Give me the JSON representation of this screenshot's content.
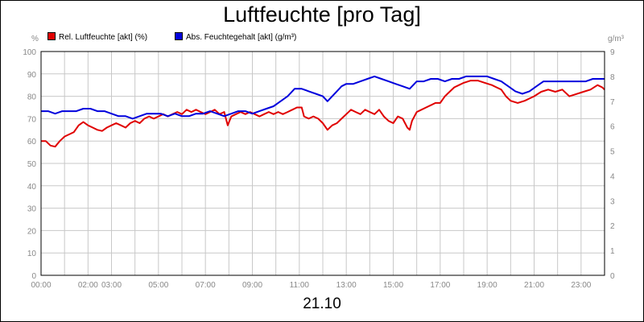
{
  "chart_data": {
    "type": "line",
    "title": "Luftfeuchte [pro Tag]",
    "date_label": "21.10",
    "left_axis": {
      "unit": "%",
      "ylim": [
        0,
        100
      ],
      "ticks": [
        0,
        10,
        20,
        30,
        40,
        50,
        60,
        70,
        80,
        90,
        100
      ]
    },
    "right_axis": {
      "unit": "g/m³",
      "ylim": [
        0,
        9
      ],
      "ticks": [
        0,
        1,
        2,
        3,
        4,
        5,
        6,
        7,
        8,
        9
      ]
    },
    "x_ticks": [
      "00:00",
      "02:00",
      "03:00",
      "05:00",
      "07:00",
      "09:00",
      "11:00",
      "13:00",
      "15:00",
      "17:00",
      "19:00",
      "21:00",
      "23:00"
    ],
    "x_tick_hours": [
      0,
      2,
      3,
      5,
      7,
      9,
      11,
      13,
      15,
      17,
      19,
      21,
      23
    ],
    "x_range_hours": [
      0,
      24
    ],
    "grid": true,
    "legend_position": "top-left",
    "series": [
      {
        "name": "Rel. Luftfeuchte [akt] (%)",
        "color": "#e00000",
        "axis": "left",
        "points": [
          [
            0.0,
            60
          ],
          [
            0.2,
            60
          ],
          [
            0.4,
            58
          ],
          [
            0.6,
            57.5
          ],
          [
            0.8,
            60
          ],
          [
            1.0,
            62
          ],
          [
            1.2,
            63
          ],
          [
            1.4,
            64
          ],
          [
            1.6,
            67
          ],
          [
            1.8,
            68.5
          ],
          [
            2.0,
            67
          ],
          [
            2.2,
            66
          ],
          [
            2.4,
            65
          ],
          [
            2.6,
            64.5
          ],
          [
            2.8,
            66
          ],
          [
            3.0,
            67
          ],
          [
            3.2,
            68
          ],
          [
            3.4,
            67
          ],
          [
            3.6,
            66
          ],
          [
            3.8,
            68
          ],
          [
            4.0,
            69
          ],
          [
            4.2,
            68
          ],
          [
            4.4,
            70
          ],
          [
            4.6,
            71
          ],
          [
            4.8,
            70
          ],
          [
            5.0,
            71
          ],
          [
            5.2,
            72
          ],
          [
            5.4,
            71
          ],
          [
            5.6,
            72
          ],
          [
            5.8,
            73
          ],
          [
            6.0,
            72
          ],
          [
            6.2,
            74
          ],
          [
            6.4,
            73
          ],
          [
            6.6,
            74
          ],
          [
            6.8,
            73
          ],
          [
            7.0,
            72
          ],
          [
            7.2,
            73
          ],
          [
            7.4,
            74
          ],
          [
            7.6,
            72
          ],
          [
            7.8,
            73
          ],
          [
            7.95,
            67
          ],
          [
            8.1,
            71
          ],
          [
            8.3,
            72
          ],
          [
            8.5,
            73
          ],
          [
            8.7,
            72
          ],
          [
            8.9,
            73
          ],
          [
            9.1,
            72
          ],
          [
            9.3,
            71
          ],
          [
            9.5,
            72
          ],
          [
            9.7,
            73
          ],
          [
            9.9,
            72
          ],
          [
            10.1,
            73
          ],
          [
            10.3,
            72
          ],
          [
            10.5,
            73
          ],
          [
            10.7,
            74
          ],
          [
            10.9,
            75
          ],
          [
            11.1,
            75
          ],
          [
            11.2,
            71
          ],
          [
            11.4,
            70
          ],
          [
            11.6,
            71
          ],
          [
            11.8,
            70
          ],
          [
            12.0,
            68
          ],
          [
            12.2,
            65
          ],
          [
            12.4,
            67
          ],
          [
            12.6,
            68
          ],
          [
            12.8,
            70
          ],
          [
            13.0,
            72
          ],
          [
            13.2,
            74
          ],
          [
            13.4,
            73
          ],
          [
            13.6,
            72
          ],
          [
            13.8,
            74
          ],
          [
            14.0,
            73
          ],
          [
            14.2,
            72
          ],
          [
            14.4,
            74
          ],
          [
            14.6,
            71
          ],
          [
            14.8,
            69
          ],
          [
            15.0,
            68
          ],
          [
            15.2,
            71
          ],
          [
            15.4,
            70
          ],
          [
            15.6,
            66
          ],
          [
            15.7,
            65
          ],
          [
            15.8,
            69
          ],
          [
            16.0,
            73
          ],
          [
            16.2,
            74
          ],
          [
            16.4,
            75
          ],
          [
            16.6,
            76
          ],
          [
            16.8,
            77
          ],
          [
            17.0,
            77
          ],
          [
            17.2,
            80
          ],
          [
            17.4,
            82
          ],
          [
            17.6,
            84
          ],
          [
            17.8,
            85
          ],
          [
            18.0,
            86
          ],
          [
            18.3,
            87
          ],
          [
            18.6,
            87
          ],
          [
            18.9,
            86
          ],
          [
            19.2,
            85
          ],
          [
            19.4,
            84
          ],
          [
            19.6,
            83
          ],
          [
            19.8,
            80
          ],
          [
            20.0,
            78
          ],
          [
            20.3,
            77
          ],
          [
            20.6,
            78
          ],
          [
            20.8,
            79
          ],
          [
            21.0,
            80
          ],
          [
            21.3,
            82
          ],
          [
            21.6,
            83
          ],
          [
            21.9,
            82
          ],
          [
            22.2,
            83
          ],
          [
            22.5,
            80
          ],
          [
            22.8,
            81
          ],
          [
            23.1,
            82
          ],
          [
            23.4,
            83
          ],
          [
            23.7,
            85
          ],
          [
            23.9,
            84
          ],
          [
            24.0,
            83
          ]
        ]
      },
      {
        "name": "Abs. Feuchtegehalt [akt] (g/m³)",
        "color": "#0000dd",
        "axis": "right",
        "points": [
          [
            0.0,
            6.6
          ],
          [
            0.3,
            6.6
          ],
          [
            0.6,
            6.5
          ],
          [
            0.9,
            6.6
          ],
          [
            1.2,
            6.6
          ],
          [
            1.5,
            6.6
          ],
          [
            1.8,
            6.7
          ],
          [
            2.1,
            6.7
          ],
          [
            2.4,
            6.6
          ],
          [
            2.7,
            6.6
          ],
          [
            3.0,
            6.5
          ],
          [
            3.3,
            6.4
          ],
          [
            3.6,
            6.4
          ],
          [
            3.9,
            6.3
          ],
          [
            4.2,
            6.4
          ],
          [
            4.5,
            6.5
          ],
          [
            4.8,
            6.5
          ],
          [
            5.1,
            6.5
          ],
          [
            5.4,
            6.4
          ],
          [
            5.7,
            6.5
          ],
          [
            6.0,
            6.4
          ],
          [
            6.3,
            6.4
          ],
          [
            6.6,
            6.5
          ],
          [
            6.9,
            6.5
          ],
          [
            7.2,
            6.6
          ],
          [
            7.5,
            6.5
          ],
          [
            7.8,
            6.4
          ],
          [
            8.1,
            6.5
          ],
          [
            8.4,
            6.6
          ],
          [
            8.7,
            6.6
          ],
          [
            9.0,
            6.5
          ],
          [
            9.3,
            6.6
          ],
          [
            9.6,
            6.7
          ],
          [
            9.9,
            6.8
          ],
          [
            10.2,
            7.0
          ],
          [
            10.5,
            7.2
          ],
          [
            10.8,
            7.5
          ],
          [
            11.1,
            7.5
          ],
          [
            11.4,
            7.4
          ],
          [
            11.7,
            7.3
          ],
          [
            12.0,
            7.2
          ],
          [
            12.2,
            7.0
          ],
          [
            12.4,
            7.2
          ],
          [
            12.6,
            7.4
          ],
          [
            12.8,
            7.6
          ],
          [
            13.0,
            7.7
          ],
          [
            13.3,
            7.7
          ],
          [
            13.6,
            7.8
          ],
          [
            13.9,
            7.9
          ],
          [
            14.2,
            8.0
          ],
          [
            14.5,
            7.9
          ],
          [
            14.8,
            7.8
          ],
          [
            15.1,
            7.7
          ],
          [
            15.4,
            7.6
          ],
          [
            15.7,
            7.5
          ],
          [
            16.0,
            7.8
          ],
          [
            16.3,
            7.8
          ],
          [
            16.6,
            7.9
          ],
          [
            16.9,
            7.9
          ],
          [
            17.2,
            7.8
          ],
          [
            17.5,
            7.9
          ],
          [
            17.8,
            7.9
          ],
          [
            18.1,
            8.0
          ],
          [
            18.4,
            8.0
          ],
          [
            18.7,
            8.0
          ],
          [
            19.0,
            8.0
          ],
          [
            19.3,
            7.9
          ],
          [
            19.6,
            7.8
          ],
          [
            19.9,
            7.6
          ],
          [
            20.2,
            7.4
          ],
          [
            20.5,
            7.3
          ],
          [
            20.8,
            7.4
          ],
          [
            21.1,
            7.6
          ],
          [
            21.4,
            7.8
          ],
          [
            21.7,
            7.8
          ],
          [
            22.0,
            7.8
          ],
          [
            22.3,
            7.8
          ],
          [
            22.6,
            7.8
          ],
          [
            22.9,
            7.8
          ],
          [
            23.2,
            7.8
          ],
          [
            23.5,
            7.9
          ],
          [
            23.8,
            7.9
          ],
          [
            24.0,
            7.9
          ]
        ]
      }
    ]
  }
}
